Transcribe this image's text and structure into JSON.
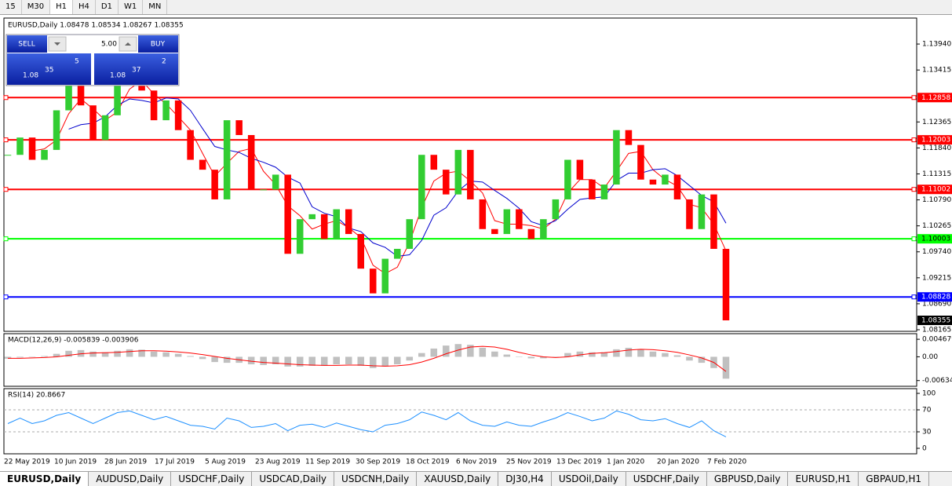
{
  "ui": {
    "timeframes": [
      "15",
      "M30",
      "H1",
      "H4",
      "D1",
      "W1",
      "MN"
    ],
    "active_timeframe": 2,
    "tabs": [
      "EURUSD,Daily",
      "AUDUSD,Daily",
      "USDCHF,Daily",
      "USDCAD,Daily",
      "USDCNH,Daily",
      "XAUUSD,Daily",
      "DJ30,H4",
      "USDOil,Daily",
      "USDCHF,Daily",
      "GBPUSD,Daily",
      "EURUSD,H1",
      "GBPAUD,H1"
    ],
    "active_tab": 0,
    "trade": {
      "sell": "SELL",
      "buy": "BUY",
      "lots": "5.00",
      "sell_price": {
        "big": "1.08",
        "main": "35",
        "sup": "5"
      },
      "buy_price": {
        "big": "1.08",
        "main": "37",
        "sup": "2"
      }
    }
  },
  "chart_data": {
    "type": "candlestick",
    "title": "EURUSD,Daily  1.08478 1.08534 1.08267 1.08355",
    "close": [
      1.117,
      1.1205,
      1.116,
      1.118,
      1.126,
      1.132,
      1.127,
      1.12,
      1.125,
      1.132,
      1.134,
      1.13,
      1.124,
      1.128,
      1.122,
      1.116,
      1.114,
      1.108,
      1.124,
      1.121,
      1.11,
      1.11,
      1.113,
      1.097,
      1.104,
      1.105,
      1.1,
      1.106,
      1.101,
      1.094,
      1.089,
      1.096,
      1.098,
      1.104,
      1.117,
      1.114,
      1.109,
      1.118,
      1.108,
      1.102,
      1.101,
      1.106,
      1.102,
      1.1,
      1.104,
      1.108,
      1.116,
      1.112,
      1.108,
      1.111,
      1.122,
      1.119,
      1.112,
      1.111,
      1.113,
      1.108,
      1.102,
      1.109,
      1.098,
      1.08355
    ],
    "up_color": "#32cd32",
    "down_color": "#ff0000",
    "moving_averages": [
      {
        "color": "#ff0000",
        "values": [
          null,
          null,
          1.1178,
          1.1182,
          1.12,
          1.1253,
          1.1283,
          1.1263,
          1.124,
          1.1257,
          1.1303,
          1.132,
          1.1293,
          1.1273,
          1.1247,
          1.122,
          1.1173,
          1.1127,
          1.1153,
          1.1177,
          1.1183,
          1.1137,
          1.111,
          1.1067,
          1.1047,
          1.102,
          1.103,
          1.1037,
          1.1023,
          1.1003,
          1.0947,
          1.093,
          1.0943,
          1.0993,
          1.1063,
          1.1117,
          1.1133,
          1.1137,
          1.1117,
          1.1093,
          1.1037,
          1.103,
          1.103,
          1.1027,
          1.102,
          1.104,
          1.1093,
          1.112,
          1.112,
          1.1103,
          1.1137,
          1.1173,
          1.1177,
          1.114,
          1.112,
          1.1107,
          1.107,
          1.1063,
          1.103,
          1.0976
        ]
      },
      {
        "color": "#0000cd",
        "values": [
          null,
          null,
          null,
          null,
          null,
          1.1222,
          1.1231,
          1.1234,
          1.1247,
          1.127,
          1.1283,
          1.128,
          1.1275,
          1.1285,
          1.1283,
          1.126,
          1.1223,
          1.1187,
          1.118,
          1.1175,
          1.1163,
          1.1155,
          1.1145,
          1.1125,
          1.1113,
          1.1065,
          1.1052,
          1.1045,
          1.1022,
          1.1015,
          1.0992,
          1.0983,
          1.0965,
          1.0968,
          1.0997,
          1.1048,
          1.1063,
          1.1097,
          1.1117,
          1.1115,
          1.1098,
          1.1082,
          1.1062,
          1.1035,
          1.1027,
          1.1037,
          1.106,
          1.108,
          1.1083,
          1.1085,
          1.1118,
          1.1133,
          1.1133,
          1.114,
          1.1142,
          1.1128,
          1.1108,
          1.1088,
          1.1075,
          1.1032
        ]
      }
    ],
    "ylim": [
      1.08133,
      1.14465
    ],
    "yticks": [
      {
        "value": 1.1394,
        "label": "1.13940"
      },
      {
        "value": 1.13415,
        "label": "1.13415"
      },
      {
        "value": 1.12365,
        "label": "1.12365"
      },
      {
        "value": 1.1184,
        "label": "1.11840"
      },
      {
        "value": 1.11315,
        "label": "1.11315"
      },
      {
        "value": 1.1079,
        "label": "1.10790"
      },
      {
        "value": 1.10265,
        "label": "1.10265"
      },
      {
        "value": 1.0974,
        "label": "1.09740"
      },
      {
        "value": 1.09215,
        "label": "1.09215"
      },
      {
        "value": 1.0869,
        "label": "1.08690"
      },
      {
        "value": 1.08165,
        "label": "1.08165"
      }
    ],
    "levels": [
      {
        "value": 1.12858,
        "label": "1.12858",
        "color": "#ff0000"
      },
      {
        "value": 1.12003,
        "label": "1.12003",
        "color": "#ff0000"
      },
      {
        "value": 1.11002,
        "label": "1.11002",
        "color": "#ff0000"
      },
      {
        "value": 1.10003,
        "label": "1.10003",
        "color": "#00ff00"
      },
      {
        "value": 1.08828,
        "label": "1.08828",
        "color": "#0000ff"
      }
    ],
    "current_price": {
      "value": 1.08355,
      "label": "1.08355"
    },
    "x_labels": [
      "22 May 2019",
      "10 Jun 2019",
      "28 Jun 2019",
      "17 Jul 2019",
      "5 Aug 2019",
      "23 Aug 2019",
      "11 Sep 2019",
      "30 Sep 2019",
      "18 Oct 2019",
      "6 Nov 2019",
      "25 Nov 2019",
      "13 Dec 2019",
      "1 Jan 2020",
      "20 Jan 2020",
      "7 Feb 2020"
    ],
    "macd": {
      "title": "MACD(12,26,9) -0.005839 -0.003906",
      "hist_color": "#c0c0c0",
      "signal_color": "#ff0000",
      "hist": [
        -0.0005,
        -0.0002,
        0.0,
        0.0002,
        0.0008,
        0.0016,
        0.0018,
        0.0014,
        0.0012,
        0.0016,
        0.002,
        0.0019,
        0.0014,
        0.0012,
        0.0008,
        0.0002,
        -0.0006,
        -0.0014,
        -0.0016,
        -0.0016,
        -0.002,
        -0.0022,
        -0.002,
        -0.0026,
        -0.0026,
        -0.0024,
        -0.0024,
        -0.002,
        -0.002,
        -0.0024,
        -0.003,
        -0.0026,
        -0.002,
        -0.001,
        0.001,
        0.0022,
        0.003,
        0.0034,
        0.0032,
        0.0024,
        0.0014,
        0.0006,
        0.0,
        -0.0004,
        -0.0004,
        0.0,
        0.001,
        0.0014,
        0.0012,
        0.0012,
        0.002,
        0.0024,
        0.002,
        0.0014,
        0.001,
        0.0004,
        -0.001,
        -0.0016,
        -0.003,
        -0.005839
      ],
      "signal": [
        -0.0004,
        -0.0004,
        -0.0003,
        -0.0002,
        0.0,
        0.0004,
        0.0008,
        0.001,
        0.0011,
        0.0012,
        0.0014,
        0.0016,
        0.0016,
        0.0015,
        0.0013,
        0.001,
        0.0006,
        0.0001,
        -0.0004,
        -0.0008,
        -0.0012,
        -0.0015,
        -0.0017,
        -0.0019,
        -0.0021,
        -0.0022,
        -0.0023,
        -0.0023,
        -0.0022,
        -0.0022,
        -0.0024,
        -0.0025,
        -0.0024,
        -0.0021,
        -0.0014,
        -0.0004,
        0.0008,
        0.0018,
        0.0026,
        0.0028,
        0.0026,
        0.002,
        0.0012,
        0.0005,
        0.0,
        -0.0002,
        0.0,
        0.0005,
        0.0009,
        0.0011,
        0.0014,
        0.0018,
        0.002,
        0.0019,
        0.0016,
        0.0012,
        0.0005,
        -0.0003,
        -0.0015,
        -0.003906
      ],
      "ylim": [
        -0.00787,
        0.00617
      ],
      "yticks": [
        {
          "value": 0.004679,
          "label": "0.004679"
        },
        {
          "value": 0,
          "label": "0.00"
        },
        {
          "value": -0.00634,
          "label": "-0.00634"
        }
      ]
    },
    "rsi": {
      "title": "RSI(14) 20.8667",
      "color": "#1e90ff",
      "values": [
        45,
        55,
        45,
        50,
        60,
        65,
        55,
        45,
        55,
        65,
        68,
        60,
        52,
        58,
        50,
        42,
        40,
        35,
        55,
        50,
        38,
        40,
        45,
        32,
        42,
        44,
        38,
        46,
        40,
        34,
        30,
        42,
        45,
        52,
        66,
        60,
        52,
        65,
        50,
        42,
        40,
        48,
        42,
        40,
        48,
        55,
        65,
        58,
        50,
        55,
        68,
        62,
        52,
        50,
        54,
        45,
        38,
        50,
        32,
        20.8667
      ],
      "ylim": [
        -10,
        108.6
      ],
      "yticks": [
        100,
        70,
        30,
        0
      ],
      "levels": [
        70,
        30
      ]
    }
  }
}
